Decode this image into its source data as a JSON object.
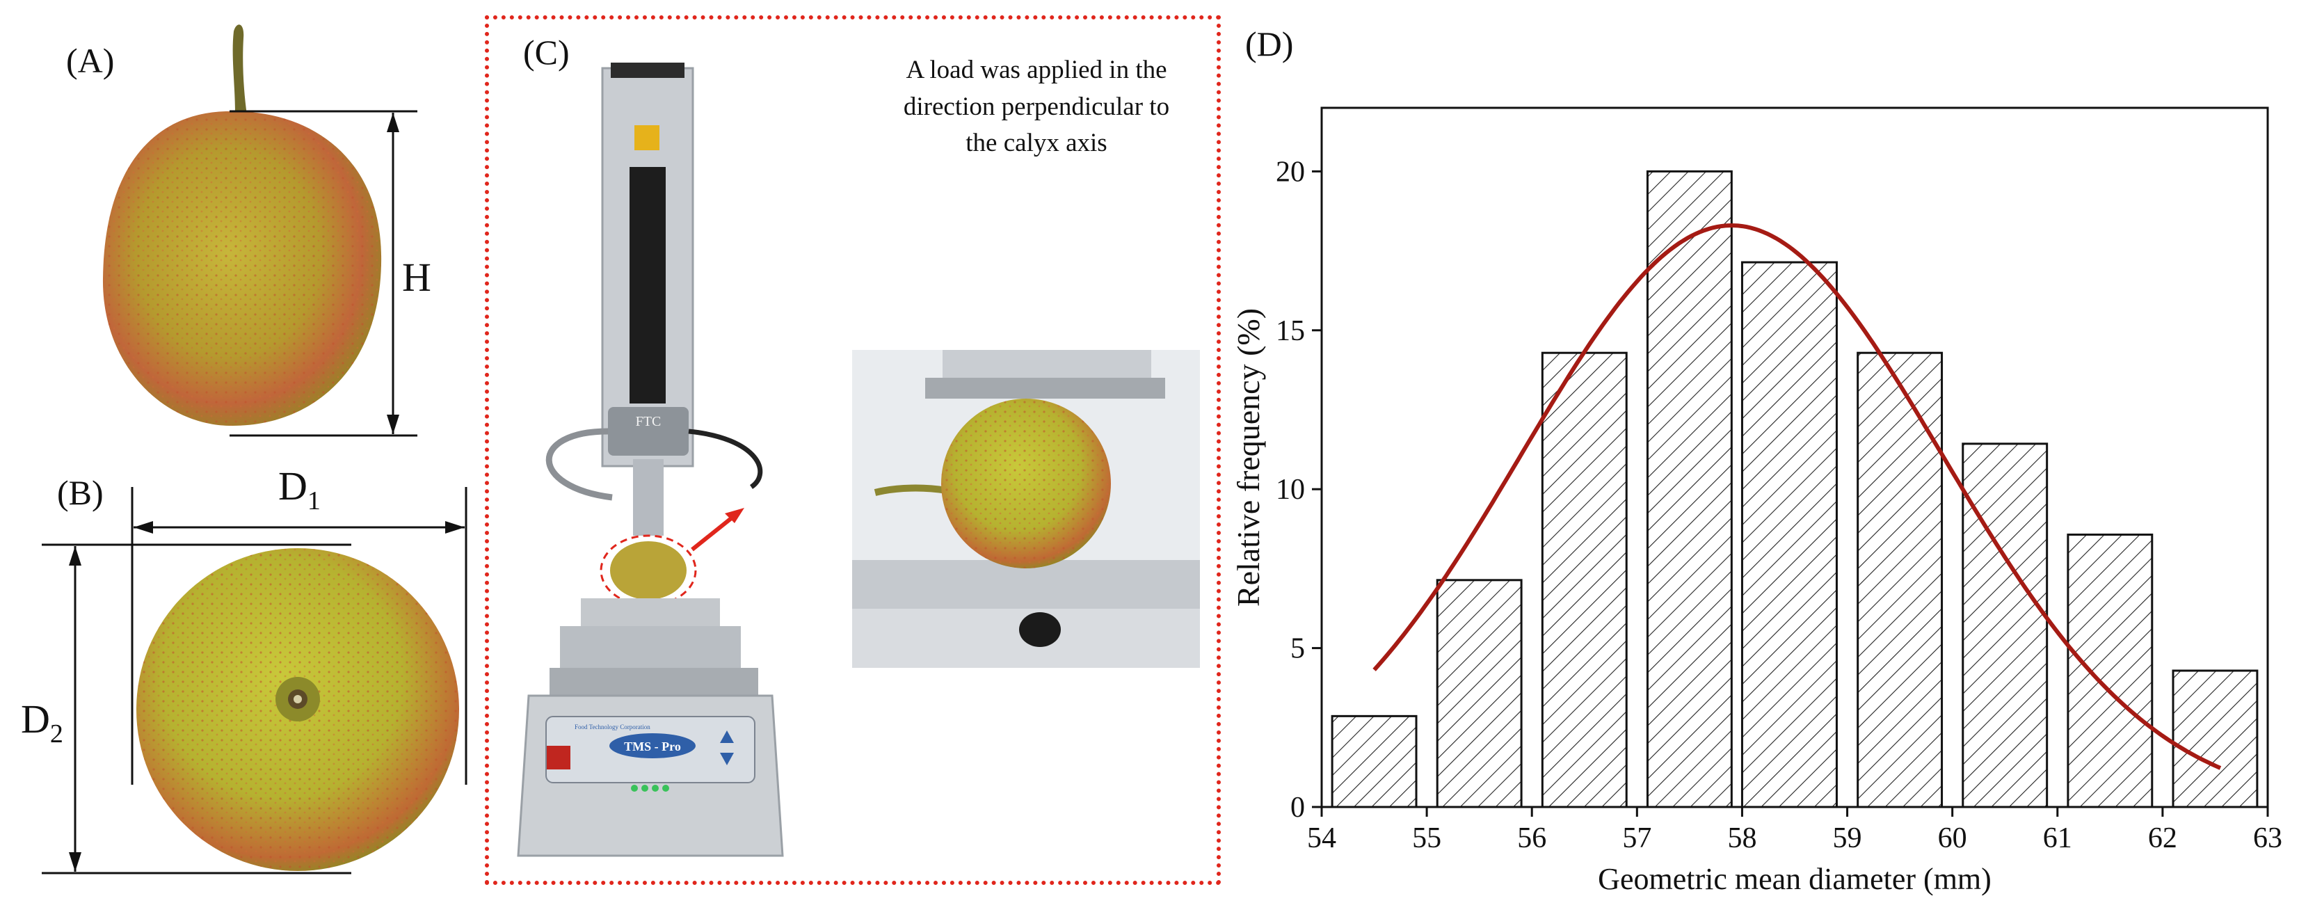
{
  "panels": {
    "a_label": "(A)",
    "b_label": "(B)",
    "c_label": "(C)",
    "d_label": "(D)"
  },
  "dimensions": {
    "height": "H",
    "d1_base": "D",
    "d1_sub": "1",
    "d2_base": "D",
    "d2_sub": "2"
  },
  "panel_c": {
    "note_lines": [
      "A load was applied in the",
      "direction perpendicular to",
      "the calyx axis"
    ],
    "machine_labels": {
      "ftc": "FTC",
      "tms_pro": "TMS - Pro",
      "brand": "Food Technology Corporation"
    }
  },
  "colors": {
    "fruit_yellow": "#b8b82a",
    "fruit_blush": "#c65a2e",
    "fit_curve": "#a51b14",
    "frame_red": "#e0261c"
  },
  "chart_data": {
    "type": "bar",
    "xlabel": "Geometric mean diameter (mm)",
    "ylabel": "Relative frequency (%)",
    "xlim": [
      54,
      63
    ],
    "ylim": [
      0,
      22
    ],
    "xticks": [
      54,
      55,
      56,
      57,
      58,
      59,
      60,
      61,
      62,
      63
    ],
    "yticks": [
      0,
      5,
      10,
      15,
      20
    ],
    "bins": [
      {
        "from": 54.1,
        "to": 54.9,
        "value": 2.86
      },
      {
        "from": 55.1,
        "to": 55.9,
        "value": 7.14
      },
      {
        "from": 56.1,
        "to": 56.9,
        "value": 14.29
      },
      {
        "from": 57.1,
        "to": 57.9,
        "value": 20.0
      },
      {
        "from": 58.0,
        "to": 58.9,
        "value": 17.14
      },
      {
        "from": 59.1,
        "to": 59.9,
        "value": 14.29
      },
      {
        "from": 60.1,
        "to": 60.9,
        "value": 11.43
      },
      {
        "from": 61.1,
        "to": 61.9,
        "value": 8.57
      },
      {
        "from": 62.1,
        "to": 62.9,
        "value": 4.29
      }
    ],
    "bar_fill": "diagonal hatch",
    "fit": {
      "type": "normal",
      "mean": 57.9,
      "sd": 2.0,
      "peak": 18.3,
      "x_from": 54.5,
      "x_to": 62.55
    },
    "grid": false
  }
}
